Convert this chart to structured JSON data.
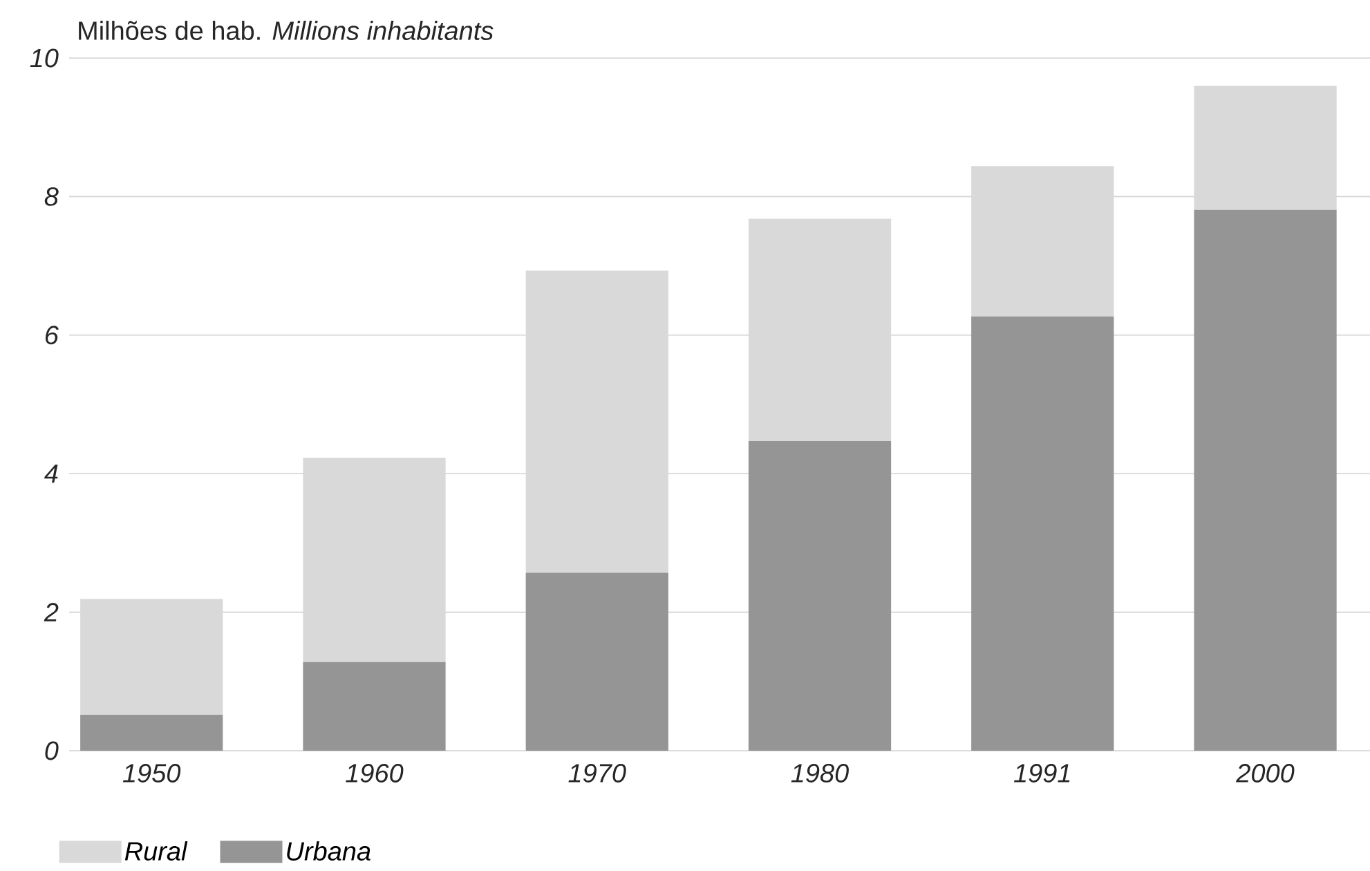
{
  "chart_data": {
    "type": "bar",
    "stacked": true,
    "ylabel": "Milhões de hab. *Millions inhabitants*",
    "categories": [
      "1950",
      "1960",
      "1970",
      "1980",
      "1991",
      "2000"
    ],
    "series": [
      {
        "name": "Urbana",
        "color": "#959595",
        "values": [
          0.52,
          1.28,
          2.57,
          4.47,
          6.27,
          7.81
        ]
      },
      {
        "name": "Rural",
        "color": "#d9d9d9",
        "values": [
          1.67,
          2.95,
          4.36,
          3.21,
          2.17,
          1.79
        ]
      }
    ],
    "ylim": [
      0,
      10
    ],
    "yticks": [
      0,
      2,
      4,
      6,
      8,
      10
    ],
    "grid": "y",
    "legend": "bottom left"
  }
}
